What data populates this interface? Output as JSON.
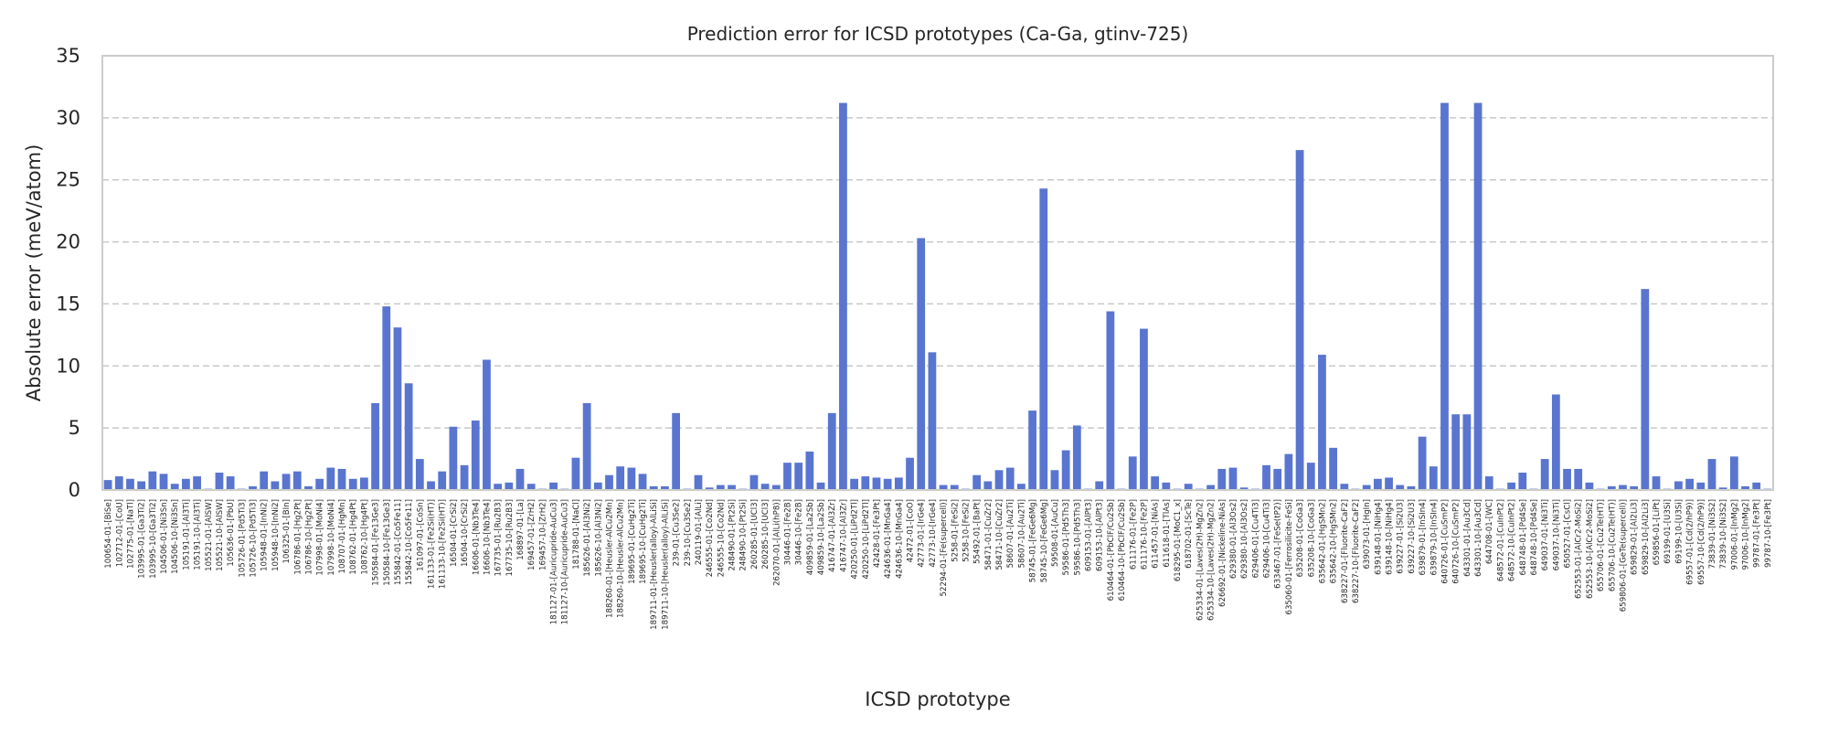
{
  "chart_data": {
    "type": "bar",
    "title": "Prediction error for ICSD prototypes (Ca-Ga, gtinv-725)",
    "xlabel": "ICSD prototype",
    "ylabel": "Absolute error (meV/atom)",
    "ylim": [
      0,
      35
    ],
    "yticks": [
      "0",
      "5",
      "10",
      "15",
      "20",
      "25",
      "30",
      "35"
    ],
    "grid": "y-dashed",
    "bar_color": "#5975cf",
    "categories": [
      "100654-01-[BiSe]",
      "102712-01-[CoU]",
      "102775-01-[NaTl]",
      "103995-01-[Ga3Ti2]",
      "103995-10-[Ga3Ti2]",
      "104506-01-[Ni3Sn]",
      "104506-10-[Ni3Sn]",
      "105191-01-[Al3Ti]",
      "105191-10-[Al3Ti]",
      "105521-01-[AlSW]",
      "105521-10-[AlSW]",
      "105636-01-[PbU]",
      "105726-01-[Pd5Ti3]",
      "105726-10-[Pd5Ti3]",
      "105948-01-[InNi2]",
      "105948-10-[InNi2]",
      "106325-01-[BIn]",
      "106786-01-[Hg2Pt]",
      "106786-10-[Hg2Pt]",
      "107998-01-[MoNi4]",
      "107998-10-[MoNi4]",
      "108707-01-[HgMn]",
      "108762-01-[Hg4Pt]",
      "108762-10-[Hg4Pt]",
      "150584-01-[Fe13Ge3]",
      "150584-10-[Fe13Ge3]",
      "155842-01-[Co5Fe11]",
      "155842-10-[Co5Fe11]",
      "161097-01-[CoSn]",
      "161133-01-[Fe2Si(HT)]",
      "161133-10-[Fe2Si(HT)]",
      "16504-01-[CrSi2]",
      "16504-10-[CrSi2]",
      "16606-01-[Nb3Te4]",
      "16606-10-[Nb3Te4]",
      "167735-01-[Ru2B3]",
      "167735-10-[Ru2B3]",
      "168897-01-[La]",
      "169457-01-[ZrH2]",
      "169457-10-[ZrH2]",
      "181127-01-[Auricupride-AuCu3]",
      "181127-10-[Auricupride-AuCu3]",
      "181788-01-[NaCl]",
      "185626-01-[Al3Ni2]",
      "185626-10-[Al3Ni2]",
      "188260-01-[Heusler-AlCu2Mn]",
      "188260-10-[Heusler-AlCu2Mn]",
      "189695-01-[CuHg2Ti]",
      "189695-10-[CuHg2Ti]",
      "189711-01-[Heusler(alloy)-AlLiSi]",
      "189711-10-[Heusler(alloy)-AlLiSi]",
      "239-01-[Cu3Se2]",
      "239-10-[Cu3Se2]",
      "240119-01-[AlLi]",
      "246555-01-[Co2Nd]",
      "246555-10-[Co2Nd]",
      "248490-01-[Pt2Si]",
      "248490-10-[Pt2Si]",
      "260285-01-[UCl3]",
      "260285-10-[UCl3]",
      "262070-01-[AlLi(hP8)]",
      "30446-01-[Fe2B]",
      "30446-10-[Fe2B]",
      "409859-01-[La2Sb]",
      "409859-10-[La2Sb]",
      "416747-01-[Al3Zr]",
      "416747-10-[Al3Zr]",
      "420250-01-[LiPd2Tl]",
      "420250-10-[LiPd2Tl]",
      "42428-01-[Fe3Pt]",
      "424636-01-[MnGa4]",
      "424636-10-[MnGa4]",
      "42472-01-[CoO]",
      "42773-01-[IrGe4]",
      "42773-10-[IrGe4]",
      "52294-01-[Fe(supercell)]",
      "5258-01-[FeSi2]",
      "5258-10-[FeSi2]",
      "55492-01-[BaPt]",
      "58471-01-[CuZr2]",
      "58471-10-[CuZr2]",
      "58607-01-[Au2Ti]",
      "58607-10-[Au2Ti]",
      "58745-01-[FeGe6Mg]",
      "58745-10-[FeGe6Mg]",
      "59508-01-[AuCu]",
      "59586-01-[Pd5Th3]",
      "59586-10-[Pd5Th3]",
      "609153-01-[AlPt3]",
      "609153-10-[AlPt3]",
      "610464-01-[PbClF/Cu2Sb]",
      "610464-10-[PbClF/Cu2Sb]",
      "611176-01-[Fe2P]",
      "611176-10-[Fe2P]",
      "611457-01-[NiAs]",
      "611618-01-[TlAs]",
      "618295-01-[MoC1_x]",
      "618702-01-[ScTe]",
      "625334-01-[Laves(2H)-MgZn2]",
      "625334-10-[Laves(2H)-MgZn2]",
      "626692-01-[Nickeline-NiAs]",
      "629380-01-[Al3Os2]",
      "629380-10-[Al3Os2]",
      "629406-01-[Cu4Ti3]",
      "629406-10-[Cu4Ti3]",
      "633467-01-[FeSe(tP2)]",
      "635060-01-[Ferrosilicite-FeSi]",
      "635208-01-[CoGa3]",
      "635208-10-[CoGa3]",
      "635642-01-[HgSMn2]",
      "635642-10-[HgSMn2]",
      "638227-01-[Fluorite-CaF2]",
      "638227-10-[Fluorite-CaF2]",
      "639073-01-[HgIn]",
      "639148-01-[NiHg4]",
      "639148-10-[NiHg4]",
      "639227-01-[Si2U3]",
      "639227-10-[Si2U3]",
      "639879-01-[InSIn4]",
      "639879-10-[InSIn4]",
      "640726-01-[CuSmP2]",
      "640726-10-[CuSmP2]",
      "643301-01-[Au3Cd]",
      "643301-10-[Au3Cd]",
      "644708-01-[WC]",
      "648572-01-[CuInPt2]",
      "648572-10-[CuInPt2]",
      "648748-01-[Pd4Se]",
      "648748-10-[Pd4Se]",
      "649037-01-[Ni3Ti]",
      "649037-10-[Ni3Ti]",
      "650527-01-[CsCl]",
      "652553-01-[AlCr2-MoSi2]",
      "652553-10-[AlCr2-MoSi2]",
      "655706-01-[Cu2Te(HT)]",
      "655706-10-[Cu2Te(HT)]",
      "659806-01-[GeTe(supercell)]",
      "659829-01-[Al2Li3]",
      "659829-10-[Al2Li3]",
      "659856-01-[LiPt]",
      "69199-01-[U3Si]",
      "69199-10-[U3Si]",
      "69557-01-[Cd(2/hP9)]",
      "69557-10-[Cd(2/hP9)]",
      "73839-01-[Ni3S2]",
      "73839-10-[Ni3S2]",
      "97006-01-[InMg2]",
      "97006-10-[InMg2]",
      "99787-01-[Fe3Pt]",
      "99787-10-[Fe3Pt]"
    ],
    "values": [
      0.8,
      1.1,
      0.9,
      0.7,
      1.5,
      1.3,
      0.5,
      0.9,
      1.1,
      0.1,
      1.4,
      1.1,
      0.1,
      0.3,
      1.5,
      0.7,
      1.3,
      1.5,
      0.3,
      0.9,
      1.8,
      1.7,
      0.9,
      1.0,
      7.0,
      14.8,
      13.1,
      8.6,
      2.5,
      0.7,
      1.5,
      5.1,
      2.0,
      5.6,
      10.5,
      0.5,
      0.6,
      1.7,
      0.5,
      0.1,
      0.6,
      0.1,
      2.6,
      7.0,
      0.6,
      1.2,
      1.9,
      1.8,
      1.3,
      0.3,
      0.3,
      6.2,
      0.1,
      1.2,
      0.2,
      0.4,
      0.4,
      0.1,
      1.2,
      0.5,
      0.4,
      2.2,
      2.2,
      3.1,
      0.6,
      6.2,
      31.2,
      0.9,
      1.1,
      1.0,
      0.9,
      1.0,
      2.6,
      20.3,
      11.1,
      0.4,
      0.4,
      0.1,
      1.2,
      0.7,
      1.6,
      1.8,
      0.5,
      6.4,
      24.3,
      1.6,
      3.2,
      5.2,
      0.1,
      0.7,
      14.4,
      0.1,
      2.7,
      13.0,
      1.1,
      0.6,
      0.1,
      0.5,
      0.1,
      0.4,
      1.7,
      1.8,
      0.2,
      0.1,
      2.0,
      1.7,
      2.9,
      27.4,
      2.2,
      10.9,
      3.4,
      0.5,
      0.1,
      0.4,
      0.9,
      1.0,
      0.4,
      0.3,
      4.3,
      1.9,
      31.2,
      6.1,
      6.1,
      31.2,
      1.1,
      0.1,
      0.6,
      1.4,
      0.1,
      2.5,
      7.7,
      1.7,
      1.7,
      0.6,
      0.1,
      0.3,
      0.4,
      0.3,
      16.2,
      1.1,
      0.1,
      0.7,
      0.9,
      0.6,
      2.5,
      0.2,
      2.7,
      0.3,
      0.6,
      0.1
    ]
  }
}
